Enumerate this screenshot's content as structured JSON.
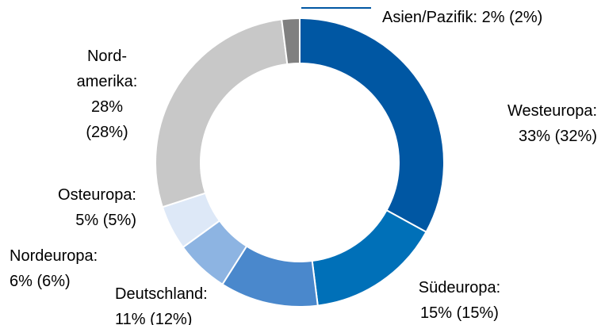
{
  "chart_data": {
    "type": "donut",
    "categories": [
      "Westeuropa:",
      "Südeuropa:",
      "Deutschland:",
      "Nordeuropa:",
      "Osteuropa:",
      "Nord-amerika:",
      "Asien/Pazifik:"
    ],
    "values": [
      33,
      15,
      11,
      6,
      5,
      28,
      2
    ],
    "value_labels": [
      "33%",
      "15%",
      "11%",
      "6%",
      "5%",
      "28%",
      "2%"
    ],
    "prior_values": [
      32,
      15,
      12,
      6,
      5,
      28,
      2
    ],
    "prior_value_labels": [
      "(32%)",
      "(15%)",
      "(12%)",
      "(6%)",
      "(5%)",
      "(28%)",
      "(2%)"
    ],
    "colors": [
      "#0057a3",
      "#0070b8",
      "#4a88cc",
      "#8db4e2",
      "#dde8f7",
      "#c8c8c8",
      "#808080"
    ]
  }
}
